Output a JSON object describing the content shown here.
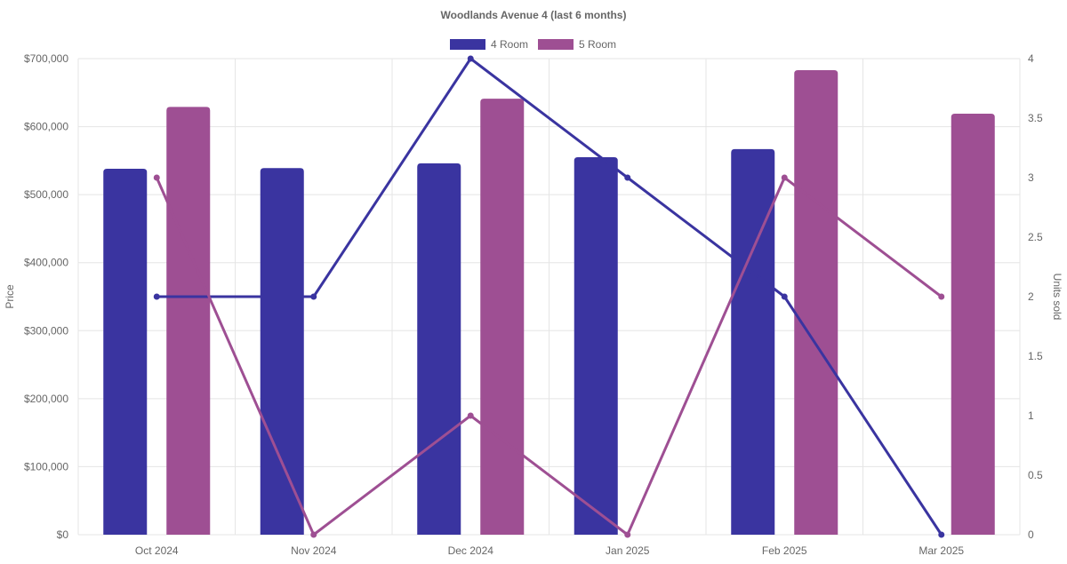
{
  "chart_data": {
    "type": "bar",
    "title": "Woodlands Avenue 4 (last 6 months)",
    "categories": [
      "Oct 2024",
      "Nov 2024",
      "Dec 2024",
      "Jan 2025",
      "Feb 2025",
      "Mar 2025"
    ],
    "legend": {
      "position": "top"
    },
    "grid": true,
    "y_left": {
      "label": "Price",
      "range": [
        0,
        700000
      ],
      "ticks": [
        "$0",
        "$100,000",
        "$200,000",
        "$300,000",
        "$400,000",
        "$500,000",
        "$600,000",
        "$700,000"
      ],
      "tick_values": [
        0,
        100000,
        200000,
        300000,
        400000,
        500000,
        600000,
        700000
      ]
    },
    "y_right": {
      "label": "Units sold",
      "range": [
        0,
        4
      ],
      "ticks": [
        "0",
        "0.5",
        "1",
        "1.5",
        "2",
        "2.5",
        "3",
        "3.5",
        "4"
      ],
      "tick_values": [
        0,
        0.5,
        1,
        1.5,
        2,
        2.5,
        3,
        3.5,
        4
      ]
    },
    "bar_series": [
      {
        "name": "4 Room",
        "color": "#3a34a0",
        "axis": "left",
        "values": [
          538000,
          539000,
          546000,
          555000,
          567000,
          null
        ]
      },
      {
        "name": "5 Room",
        "color": "#9e4f93",
        "axis": "left",
        "values": [
          629000,
          null,
          641000,
          null,
          683000,
          619000
        ]
      }
    ],
    "line_series": [
      {
        "color": "#3a34a0",
        "axis": "right",
        "values": [
          2,
          2,
          4,
          3,
          2,
          0
        ]
      },
      {
        "color": "#9e4f93",
        "axis": "right",
        "values": [
          3,
          0,
          1,
          0,
          3,
          2
        ]
      }
    ]
  }
}
